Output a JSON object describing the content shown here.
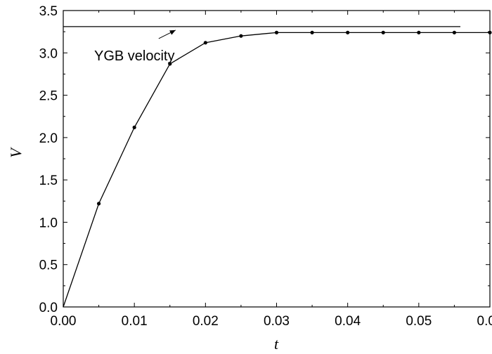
{
  "chart_data": {
    "type": "line",
    "xlabel": "t",
    "ylabel": "V",
    "xlim": [
      0.0,
      0.06
    ],
    "ylim": [
      0.0,
      3.5
    ],
    "xticks": [
      "0.00",
      "0.01",
      "0.02",
      "0.03",
      "0.04",
      "0.05",
      "0.06"
    ],
    "yticks": [
      "0.0",
      "0.5",
      "1.0",
      "1.5",
      "2.0",
      "2.5",
      "3.0",
      "3.5"
    ],
    "series": [
      {
        "x": [
          0.0,
          0.005,
          0.01,
          0.015,
          0.02,
          0.025,
          0.03,
          0.035,
          0.04,
          0.045,
          0.05,
          0.055,
          0.06
        ],
        "values": [
          0.0,
          1.22,
          2.12,
          2.87,
          3.12,
          3.2,
          3.24,
          3.24,
          3.24,
          3.24,
          3.24,
          3.24,
          3.24
        ],
        "markers": true
      }
    ],
    "reference_line": {
      "label": "YGB velocity",
      "y": 3.31
    },
    "annotation": {
      "text": "YGB velocity",
      "arrow_to": [
        0.0155,
        3.31
      ]
    },
    "grid": false,
    "legend": "none"
  }
}
